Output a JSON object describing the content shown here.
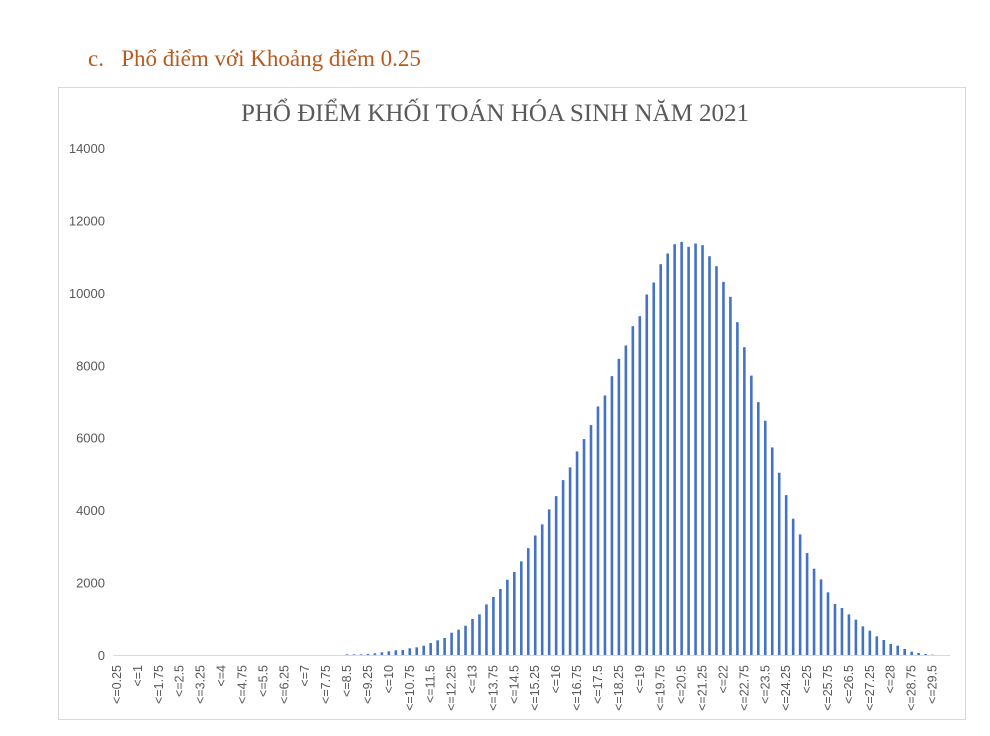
{
  "heading": "c.   Phổ điểm với Khoảng điểm 0.25",
  "chart_data": {
    "type": "bar",
    "title": "PHỔ ĐIỂM KHỐI TOÁN HÓA SINH NĂM 2021",
    "xlabel": "",
    "ylabel": "",
    "ylim": [
      0,
      14000
    ],
    "yticks": [
      "0",
      "2000",
      "4000",
      "6000",
      "8000",
      "10000",
      "12000",
      "14000"
    ],
    "grid": false,
    "legend": "none",
    "bar_color": "#4472c4",
    "x": [
      0.25,
      0.5,
      0.75,
      1,
      1.25,
      1.5,
      1.75,
      2,
      2.25,
      2.5,
      2.75,
      3,
      3.25,
      3.5,
      3.75,
      4,
      4.25,
      4.5,
      4.75,
      5,
      5.25,
      5.5,
      5.75,
      6,
      6.25,
      6.5,
      6.75,
      7,
      7.25,
      7.5,
      7.75,
      8,
      8.25,
      8.5,
      8.75,
      9,
      9.25,
      9.5,
      9.75,
      10,
      10.25,
      10.5,
      10.75,
      11,
      11.25,
      11.5,
      11.75,
      12,
      12.25,
      12.5,
      12.75,
      13,
      13.25,
      13.5,
      13.75,
      14,
      14.25,
      14.5,
      14.75,
      15,
      15.25,
      15.5,
      15.75,
      16,
      16.25,
      16.5,
      16.75,
      17,
      17.25,
      17.5,
      17.75,
      18,
      18.25,
      18.5,
      18.75,
      19,
      19.25,
      19.5,
      19.75,
      20,
      20.25,
      20.5,
      20.75,
      21,
      21.25,
      21.5,
      21.75,
      22,
      22.25,
      22.5,
      22.75,
      23,
      23.25,
      23.5,
      23.75,
      24,
      24.25,
      24.5,
      24.75,
      25,
      25.25,
      25.5,
      25.75,
      26,
      26.25,
      26.5,
      26.75,
      27,
      27.25,
      27.5,
      27.75,
      28,
      28.25,
      28.5,
      28.75,
      29,
      29.25,
      29.5,
      29.75,
      30
    ],
    "values": [
      0,
      0,
      0,
      0,
      0,
      0,
      0,
      0,
      0,
      0,
      0,
      0,
      0,
      0,
      0,
      0,
      0,
      0,
      0,
      0,
      0,
      0,
      0,
      0,
      0,
      0,
      0,
      0,
      0,
      0,
      0,
      0,
      0,
      18,
      18,
      18,
      28,
      46,
      74,
      101,
      129,
      138,
      184,
      212,
      258,
      331,
      405,
      469,
      616,
      699,
      810,
      994,
      1122,
      1398,
      1601,
      1822,
      2079,
      2291,
      2585,
      2950,
      3300,
      3606,
      4020,
      4388,
      4830,
      5180,
      5621,
      5962,
      6348,
      6863,
      7167,
      7700,
      8179,
      8547,
      9080,
      9356,
      9954,
      10286,
      10792,
      11086,
      11344,
      11408,
      11270,
      11362,
      11316,
      11012,
      10736,
      10304,
      9890,
      9191,
      8500,
      7715,
      6983,
      6468,
      5732,
      5032,
      4416,
      3763,
      3330,
      2815,
      2383,
      2088,
      1730,
      1408,
      1297,
      1122,
      975,
      791,
      672,
      515,
      414,
      304,
      258,
      166,
      92,
      55,
      28,
      10,
      0,
      0
    ],
    "tick_labels": [
      "<=0.25",
      "<=1",
      "<=1.75",
      "<=2.5",
      "<=3.25",
      "<=4",
      "<=4.75",
      "<=5.5",
      "<=6.25",
      "<=7",
      "<=7.75",
      "<=8.5",
      "<=9.25",
      "<=10",
      "<=10.75",
      "<=11.5",
      "<=12.25",
      "<=13",
      "<=13.75",
      "<=14.5",
      "<=15.25",
      "<=16",
      "<=16.75",
      "<=17.5",
      "<=18.25",
      "<=19",
      "<=19.75",
      "<=20.5",
      "<=21.25",
      "<=22",
      "<=22.75",
      "<=23.5",
      "<=24.25",
      "<=25",
      "<=25.75",
      "<=26.5",
      "<=27.25",
      "<=28",
      "<=28.75",
      "<=29.5"
    ]
  }
}
